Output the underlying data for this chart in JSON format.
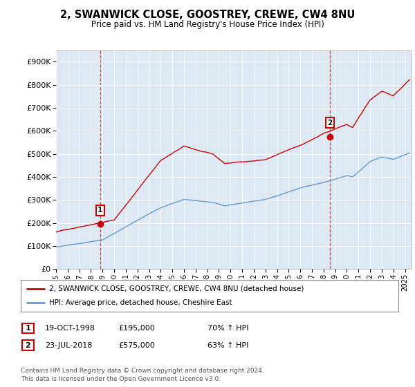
{
  "title": "2, SWANWICK CLOSE, GOOSTREY, CREWE, CW4 8NU",
  "subtitle": "Price paid vs. HM Land Registry's House Price Index (HPI)",
  "sale1_date": 1998.8,
  "sale1_price": 195000,
  "sale2_date": 2018.55,
  "sale2_price": 575000,
  "legend_line1": "2, SWANWICK CLOSE, GOOSTREY, CREWE, CW4 8NU (detached house)",
  "legend_line2": "HPI: Average price, detached house, Cheshire East",
  "footnote1": "Contains HM Land Registry data © Crown copyright and database right 2024.",
  "footnote2": "This data is licensed under the Open Government Licence v3.0.",
  "red_color": "#cc0000",
  "blue_color": "#6699cc",
  "bg_color": "#ffffff",
  "plot_bg_color": "#dce9f5",
  "grid_color": "#ffffff",
  "ylim_min": 0,
  "ylim_max": 950000,
  "xlim_min": 1995.0,
  "xlim_max": 2025.5
}
